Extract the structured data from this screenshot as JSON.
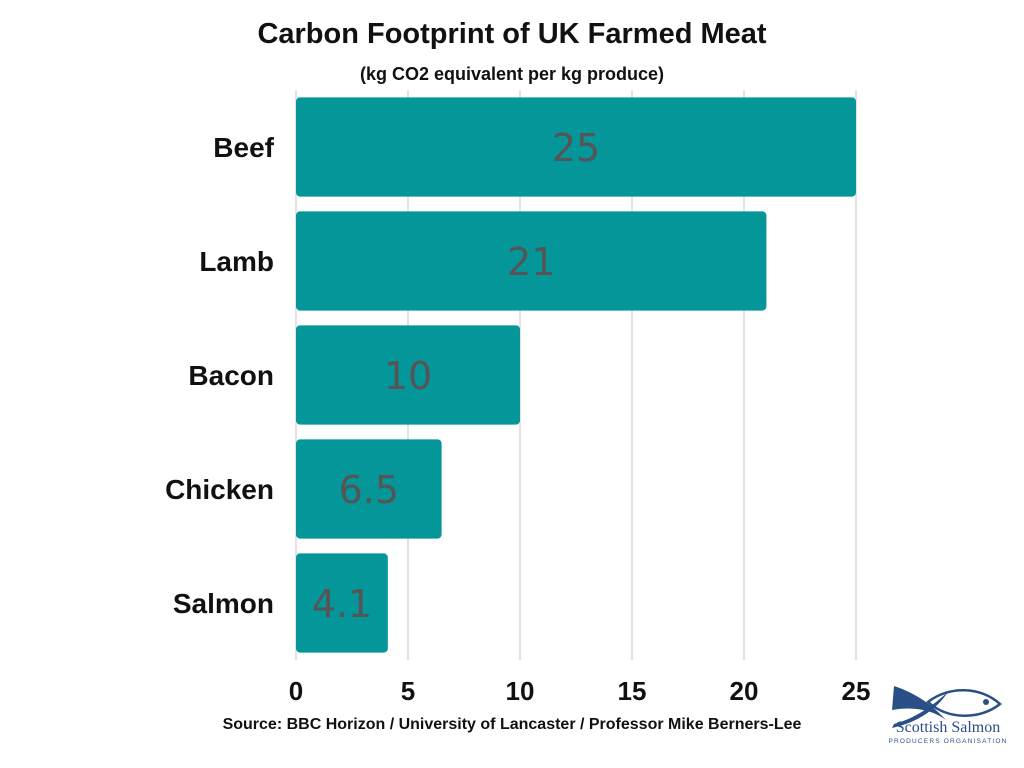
{
  "title": "Carbon Footprint of UK Farmed Meat",
  "subtitle": "(kg CO2 equivalent per kg produce)",
  "source": "Source: BBC Horizon / University of Lancaster / Professor Mike Berners-Lee",
  "logo": {
    "name": "Scottish Salmon",
    "sub": "PRODUCERS ORGANISATION",
    "icon": "fish-logo-icon",
    "color": "#2a4f87"
  },
  "colors": {
    "bar": "#05969a",
    "grid": "#d9d9d9",
    "value_text": "#555555"
  },
  "chart_data": {
    "type": "bar",
    "orientation": "horizontal",
    "categories": [
      "Beef",
      "Lamb",
      "Bacon",
      "Chicken",
      "Salmon"
    ],
    "values": [
      25,
      21,
      10,
      6.5,
      4.1
    ],
    "value_labels": [
      "25",
      "21",
      "10",
      "6.5",
      "4.1"
    ],
    "title": "Carbon Footprint of UK Farmed Meat",
    "subtitle": "(kg CO2 equivalent per kg produce)",
    "xlabel": "",
    "ylabel": "",
    "xlim": [
      0,
      25
    ],
    "xticks": [
      0,
      5,
      10,
      15,
      20,
      25
    ],
    "grid": true,
    "legend": "none"
  }
}
